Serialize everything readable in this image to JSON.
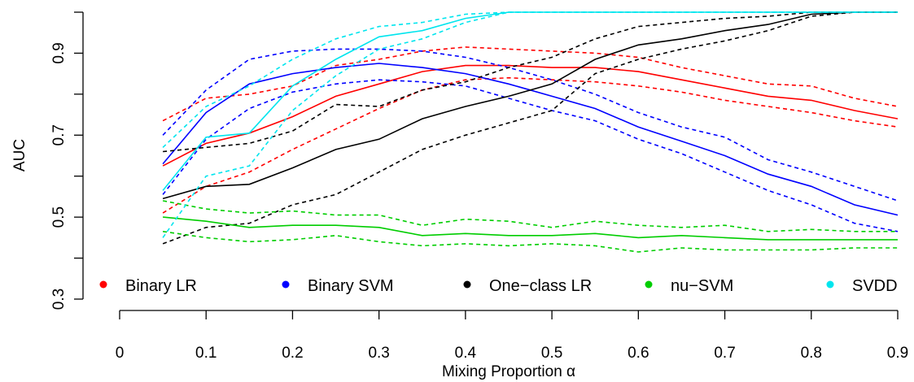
{
  "chart_data": {
    "type": "line",
    "xlabel": "Mixing Proportion α",
    "ylabel": "AUC",
    "xlim": [
      0,
      0.9
    ],
    "ylim": [
      0.3,
      1.0
    ],
    "x_ticks": [
      "0",
      "0.1",
      "0.2",
      "0.3",
      "0.4",
      "0.5",
      "0.6",
      "0.7",
      "0.8",
      "0.9"
    ],
    "y_ticks": [
      "0.3",
      "0.5",
      "0.7",
      "0.9"
    ],
    "y_minor_ticks": [
      0.4,
      0.6,
      0.8,
      1.0
    ],
    "legend_position": "bottom",
    "x": [
      0.05,
      0.1,
      0.15,
      0.2,
      0.25,
      0.3,
      0.35,
      0.4,
      0.45,
      0.5,
      0.55,
      0.6,
      0.65,
      0.7,
      0.75,
      0.8,
      0.85,
      0.9
    ],
    "series": [
      {
        "name": "Binary LR",
        "color": "#ff0000",
        "values": [
          0.625,
          0.68,
          0.705,
          0.745,
          0.795,
          0.825,
          0.855,
          0.87,
          0.87,
          0.865,
          0.865,
          0.855,
          0.835,
          0.815,
          0.795,
          0.785,
          0.76,
          0.74
        ],
        "upper": [
          0.735,
          0.79,
          0.8,
          0.82,
          0.87,
          0.885,
          0.905,
          0.915,
          0.91,
          0.905,
          0.9,
          0.89,
          0.865,
          0.845,
          0.825,
          0.82,
          0.79,
          0.77
        ],
        "lower": [
          0.51,
          0.575,
          0.61,
          0.665,
          0.715,
          0.765,
          0.81,
          0.835,
          0.84,
          0.835,
          0.83,
          0.82,
          0.805,
          0.785,
          0.77,
          0.755,
          0.735,
          0.72
        ]
      },
      {
        "name": "Binary SVM",
        "color": "#0000ff",
        "values": [
          0.63,
          0.755,
          0.825,
          0.85,
          0.865,
          0.875,
          0.865,
          0.85,
          0.825,
          0.795,
          0.765,
          0.72,
          0.685,
          0.65,
          0.605,
          0.575,
          0.53,
          0.505
        ],
        "upper": [
          0.7,
          0.81,
          0.885,
          0.905,
          0.91,
          0.91,
          0.905,
          0.89,
          0.865,
          0.835,
          0.8,
          0.755,
          0.72,
          0.695,
          0.64,
          0.61,
          0.575,
          0.54
        ],
        "lower": [
          0.555,
          0.69,
          0.765,
          0.805,
          0.825,
          0.835,
          0.83,
          0.82,
          0.79,
          0.76,
          0.735,
          0.69,
          0.655,
          0.61,
          0.565,
          0.53,
          0.485,
          0.465
        ]
      },
      {
        "name": "One−class LR",
        "color": "#000000",
        "values": [
          0.545,
          0.575,
          0.58,
          0.62,
          0.665,
          0.69,
          0.74,
          0.77,
          0.795,
          0.825,
          0.885,
          0.92,
          0.935,
          0.955,
          0.97,
          0.995,
          1.0,
          1.0
        ],
        "upper": [
          0.66,
          0.67,
          0.68,
          0.71,
          0.775,
          0.77,
          0.81,
          0.83,
          0.865,
          0.89,
          0.935,
          0.965,
          0.975,
          0.985,
          0.99,
          1.0,
          1.0,
          1.0
        ],
        "lower": [
          0.435,
          0.475,
          0.485,
          0.53,
          0.555,
          0.61,
          0.665,
          0.7,
          0.73,
          0.76,
          0.85,
          0.885,
          0.91,
          0.93,
          0.955,
          0.99,
          1.0,
          1.0
        ]
      },
      {
        "name": "nu−SVM",
        "color": "#00cd00",
        "values": [
          0.5,
          0.49,
          0.475,
          0.48,
          0.48,
          0.475,
          0.455,
          0.46,
          0.455,
          0.455,
          0.46,
          0.45,
          0.455,
          0.45,
          0.445,
          0.445,
          0.445,
          0.445
        ],
        "upper": [
          0.54,
          0.52,
          0.51,
          0.515,
          0.505,
          0.505,
          0.48,
          0.495,
          0.49,
          0.475,
          0.49,
          0.48,
          0.475,
          0.48,
          0.465,
          0.47,
          0.465,
          0.465
        ],
        "lower": [
          0.465,
          0.45,
          0.44,
          0.445,
          0.455,
          0.44,
          0.43,
          0.435,
          0.43,
          0.435,
          0.43,
          0.415,
          0.425,
          0.42,
          0.42,
          0.42,
          0.425,
          0.425
        ]
      },
      {
        "name": "SVDD",
        "color": "#00e5ee",
        "values": [
          0.565,
          0.695,
          0.705,
          0.82,
          0.885,
          0.94,
          0.955,
          0.985,
          1.0,
          1.0,
          1.0,
          1.0,
          1.0,
          1.0,
          1.0,
          1.0,
          1.0,
          1.0
        ],
        "upper": [
          0.67,
          0.77,
          0.82,
          0.885,
          0.935,
          0.965,
          0.975,
          0.995,
          1.0,
          1.0,
          1.0,
          1.0,
          1.0,
          1.0,
          1.0,
          1.0,
          1.0,
          1.0
        ],
        "lower": [
          0.45,
          0.6,
          0.625,
          0.76,
          0.845,
          0.91,
          0.935,
          0.975,
          1.0,
          1.0,
          1.0,
          1.0,
          1.0,
          1.0,
          1.0,
          1.0,
          1.0,
          1.0
        ]
      }
    ]
  }
}
